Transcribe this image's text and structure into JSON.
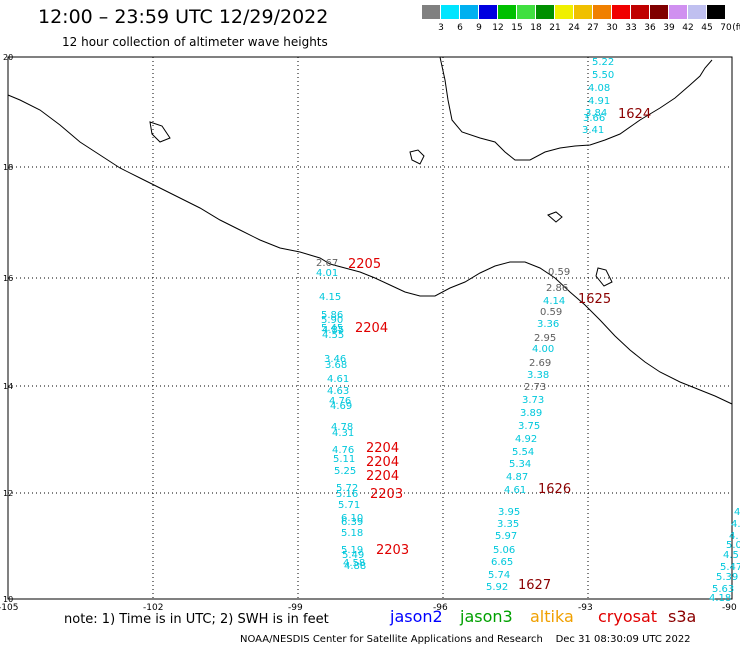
{
  "title": "12:00 – 23:59 UTC 12/29/2022",
  "subtitle": "12 hour collection of altimeter wave heights",
  "colorbar": {
    "unit": "(ft)",
    "labels": [
      "3",
      "6",
      "9",
      "12",
      "15",
      "18",
      "21",
      "24",
      "27",
      "30",
      "33",
      "36",
      "39",
      "42",
      "45",
      "70"
    ],
    "colors": [
      "#808080",
      "#00e5ff",
      "#00b0f0",
      "#0000e0",
      "#00c000",
      "#40e040",
      "#009000",
      "#f0f000",
      "#f0c000",
      "#f08000",
      "#f00000",
      "#c00000",
      "#800000",
      "#d090f0",
      "#c0c0f0",
      "#000000"
    ]
  },
  "axes": {
    "lat_labels": [
      "20",
      "18",
      "16",
      "14",
      "12",
      "10"
    ],
    "lon_labels": [
      "-105",
      "-102",
      "-99",
      "-96",
      "-93",
      "-90"
    ]
  },
  "tracks": [
    {
      "id": "1624",
      "color": "#8b0000",
      "values": [
        "5.22",
        "5.50",
        "4.08",
        "4.91",
        "3.84",
        "3.66",
        "3.41"
      ]
    },
    {
      "id": "2205",
      "color": "#e00000",
      "values": [
        "2.67",
        "4.01"
      ]
    },
    {
      "id": "2204",
      "color": "#e00000",
      "values": [
        "4.15",
        "5.86",
        "5.90",
        "5.45",
        "4.85",
        "4.55"
      ]
    },
    {
      "id": "2204b",
      "color": "#e00000",
      "values": [
        "3.46",
        "3.68",
        "4.61",
        "4.63",
        "4.76",
        "4.69",
        "4.78",
        "4.31",
        "4.76",
        "5.11",
        "5.25"
      ]
    },
    {
      "id": "2203",
      "color": "#e00000",
      "values": [
        "5.72",
        "5.16",
        "5.71",
        "6.10",
        "6.39",
        "5.18",
        "5.19",
        "5.49",
        "4.58",
        "4.88"
      ]
    },
    {
      "id": "1625",
      "color": "#8b0000",
      "values": [
        "0.59",
        "2.86",
        "4.14",
        "0.59",
        "3.36",
        "2.95",
        "4.00",
        "2.69",
        "3.38",
        "2.73",
        "3.73",
        "3.89",
        "3.75",
        "4.92",
        "5.54",
        "5.34",
        "4.87",
        "4.61"
      ]
    },
    {
      "id": "1627",
      "color": "#8b0000",
      "values": [
        "3.95",
        "3.35",
        "5.97",
        "5.06",
        "6.65",
        "5.74",
        "5.92"
      ]
    },
    {
      "id": "edge",
      "color": "#00c8dc",
      "values": [
        "4.",
        "4.",
        "4.",
        "5.0",
        "4.5",
        "5.47",
        "5.39",
        "5.63",
        "4.18"
      ]
    }
  ],
  "footer": {
    "note": "note: 1) Time is in UTC; 2) SWH is in feet",
    "satellites": [
      {
        "name": "jason2",
        "color": "#0000ff"
      },
      {
        "name": "jason3",
        "color": "#00a000"
      },
      {
        "name": "altika",
        "color": "#f0a000"
      },
      {
        "name": "cryosat",
        "color": "#e00000"
      },
      {
        "name": "s3a",
        "color": "#8b0000"
      }
    ],
    "credit": "NOAA/NESDIS Center for Satellite Applications and Research    Dec 31 08:30:09 UTC 2022"
  }
}
